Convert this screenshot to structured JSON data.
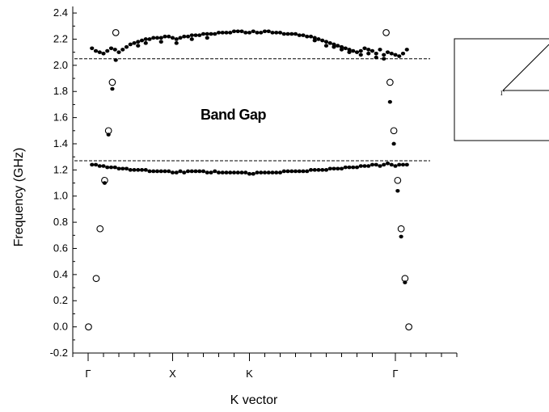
{
  "chart_data": {
    "type": "scatter",
    "xlabel": "K vector",
    "ylabel": "Frequency (GHz)",
    "ylim": [
      -0.2,
      2.45
    ],
    "yticks": [
      -0.2,
      0.0,
      0.2,
      0.4,
      0.6,
      0.8,
      1.0,
      1.2,
      1.4,
      1.6,
      1.8,
      2.0,
      2.2,
      2.4
    ],
    "ytick_labels": [
      "-0.2",
      "0.0",
      "0.2",
      "0.4",
      "0.6",
      "0.8",
      "1.0",
      "1.2",
      "1.4",
      "1.6",
      "1.8",
      "2.0",
      "2.2",
      "2.4"
    ],
    "xlim": [
      0,
      100
    ],
    "xticks": [
      {
        "x": 4,
        "label": "Γ"
      },
      {
        "x": 26,
        "label": "X"
      },
      {
        "x": 46,
        "label": "K"
      },
      {
        "x": 84,
        "label": "Γ"
      }
    ],
    "minor_xticks": [
      0,
      8,
      12,
      16,
      20,
      30,
      34,
      38,
      42,
      50,
      54,
      58,
      62,
      66,
      70,
      74,
      78,
      88,
      92,
      96,
      100
    ],
    "annotation": "Band Gap",
    "gap_lines": [
      2.05,
      1.27
    ],
    "grid": false,
    "series": [
      {
        "marker": "open-circle",
        "points": [
          [
            4.1,
            0.0
          ],
          [
            6.1,
            0.37
          ],
          [
            7.1,
            0.75
          ],
          [
            8.3,
            1.12
          ],
          [
            9.3,
            1.5
          ],
          [
            10.3,
            1.87
          ],
          [
            11.2,
            2.25
          ],
          [
            81.6,
            2.25
          ],
          [
            82.6,
            1.87
          ],
          [
            83.6,
            1.5
          ],
          [
            84.6,
            1.12
          ],
          [
            85.5,
            0.75
          ],
          [
            86.5,
            0.37
          ],
          [
            87.5,
            0.0
          ]
        ]
      },
      {
        "marker": "filled-dot",
        "points": [
          [
            8.3,
            1.1
          ],
          [
            9.3,
            1.47
          ],
          [
            10.3,
            1.82
          ],
          [
            11.2,
            2.04
          ],
          [
            82.6,
            1.72
          ],
          [
            83.6,
            1.4
          ],
          [
            84.6,
            1.04
          ],
          [
            85.5,
            0.69
          ],
          [
            86.5,
            0.34
          ]
        ]
      },
      {
        "name": "",
        "marker": "filled-dot",
        "band": "upper",
        "points": [
          [
            5,
            2.13
          ],
          [
            6,
            2.11
          ],
          [
            7,
            2.1
          ],
          [
            8,
            2.09
          ],
          [
            9,
            2.11
          ],
          [
            10,
            2.13
          ],
          [
            11,
            2.12
          ],
          [
            12,
            2.1
          ],
          [
            13,
            2.12
          ],
          [
            14,
            2.14
          ],
          [
            15,
            2.16
          ],
          [
            16,
            2.17
          ],
          [
            17,
            2.18
          ],
          [
            18,
            2.19
          ],
          [
            19,
            2.2
          ],
          [
            20,
            2.2
          ],
          [
            21,
            2.21
          ],
          [
            22,
            2.21
          ],
          [
            23,
            2.21
          ],
          [
            24,
            2.22
          ],
          [
            25,
            2.22
          ],
          [
            26,
            2.21
          ],
          [
            27,
            2.2
          ],
          [
            28,
            2.21
          ],
          [
            29,
            2.22
          ],
          [
            30,
            2.22
          ],
          [
            31,
            2.23
          ],
          [
            32,
            2.23
          ],
          [
            33,
            2.23
          ],
          [
            34,
            2.24
          ],
          [
            35,
            2.24
          ],
          [
            36,
            2.24
          ],
          [
            37,
            2.24
          ],
          [
            38,
            2.25
          ],
          [
            39,
            2.25
          ],
          [
            40,
            2.25
          ],
          [
            41,
            2.25
          ],
          [
            42,
            2.26
          ],
          [
            43,
            2.26
          ],
          [
            44,
            2.26
          ],
          [
            45,
            2.25
          ],
          [
            46,
            2.25
          ],
          [
            47,
            2.26
          ],
          [
            48,
            2.25
          ],
          [
            49,
            2.25
          ],
          [
            50,
            2.26
          ],
          [
            51,
            2.26
          ],
          [
            52,
            2.25
          ],
          [
            53,
            2.25
          ],
          [
            54,
            2.25
          ],
          [
            55,
            2.24
          ],
          [
            56,
            2.24
          ],
          [
            57,
            2.24
          ],
          [
            58,
            2.24
          ],
          [
            59,
            2.23
          ],
          [
            60,
            2.23
          ],
          [
            61,
            2.22
          ],
          [
            62,
            2.22
          ],
          [
            63,
            2.21
          ],
          [
            64,
            2.2
          ],
          [
            65,
            2.19
          ],
          [
            66,
            2.18
          ],
          [
            67,
            2.17
          ],
          [
            68,
            2.16
          ],
          [
            69,
            2.15
          ],
          [
            70,
            2.14
          ],
          [
            71,
            2.13
          ],
          [
            72,
            2.12
          ],
          [
            73,
            2.11
          ],
          [
            74,
            2.1
          ],
          [
            75,
            2.11
          ],
          [
            76,
            2.13
          ],
          [
            77,
            2.12
          ],
          [
            78,
            2.11
          ],
          [
            79,
            2.09
          ],
          [
            80,
            2.12
          ],
          [
            81,
            2.08
          ],
          [
            82,
            2.1
          ],
          [
            83,
            2.09
          ],
          [
            84,
            2.08
          ],
          [
            85,
            2.07
          ],
          [
            86,
            2.09
          ],
          [
            87,
            2.12
          ],
          [
            17,
            2.15
          ],
          [
            19,
            2.17
          ],
          [
            23,
            2.18
          ],
          [
            27,
            2.17
          ],
          [
            31,
            2.2
          ],
          [
            35,
            2.21
          ],
          [
            63,
            2.19
          ],
          [
            66,
            2.15
          ],
          [
            68,
            2.14
          ],
          [
            70,
            2.12
          ],
          [
            72,
            2.1
          ],
          [
            75,
            2.08
          ],
          [
            77,
            2.09
          ],
          [
            79,
            2.06
          ],
          [
            81,
            2.05
          ]
        ]
      },
      {
        "name": "",
        "marker": "filled-dot",
        "band": "lower",
        "points": [
          [
            5,
            1.24
          ],
          [
            6,
            1.24
          ],
          [
            7,
            1.23
          ],
          [
            8,
            1.23
          ],
          [
            9,
            1.22
          ],
          [
            10,
            1.22
          ],
          [
            11,
            1.22
          ],
          [
            12,
            1.21
          ],
          [
            13,
            1.21
          ],
          [
            14,
            1.21
          ],
          [
            15,
            1.2
          ],
          [
            16,
            1.2
          ],
          [
            17,
            1.2
          ],
          [
            18,
            1.2
          ],
          [
            19,
            1.2
          ],
          [
            20,
            1.19
          ],
          [
            21,
            1.19
          ],
          [
            22,
            1.19
          ],
          [
            23,
            1.19
          ],
          [
            24,
            1.19
          ],
          [
            25,
            1.19
          ],
          [
            26,
            1.18
          ],
          [
            27,
            1.18
          ],
          [
            28,
            1.19
          ],
          [
            29,
            1.18
          ],
          [
            30,
            1.19
          ],
          [
            31,
            1.19
          ],
          [
            32,
            1.19
          ],
          [
            33,
            1.19
          ],
          [
            34,
            1.19
          ],
          [
            35,
            1.18
          ],
          [
            36,
            1.18
          ],
          [
            37,
            1.19
          ],
          [
            38,
            1.18
          ],
          [
            39,
            1.18
          ],
          [
            40,
            1.18
          ],
          [
            41,
            1.18
          ],
          [
            42,
            1.18
          ],
          [
            43,
            1.18
          ],
          [
            44,
            1.18
          ],
          [
            45,
            1.18
          ],
          [
            46,
            1.17
          ],
          [
            47,
            1.17
          ],
          [
            48,
            1.18
          ],
          [
            49,
            1.18
          ],
          [
            50,
            1.18
          ],
          [
            51,
            1.18
          ],
          [
            52,
            1.18
          ],
          [
            53,
            1.18
          ],
          [
            54,
            1.18
          ],
          [
            55,
            1.19
          ],
          [
            56,
            1.19
          ],
          [
            57,
            1.19
          ],
          [
            58,
            1.19
          ],
          [
            59,
            1.19
          ],
          [
            60,
            1.19
          ],
          [
            61,
            1.19
          ],
          [
            62,
            1.2
          ],
          [
            63,
            1.2
          ],
          [
            64,
            1.2
          ],
          [
            65,
            1.2
          ],
          [
            66,
            1.2
          ],
          [
            67,
            1.21
          ],
          [
            68,
            1.21
          ],
          [
            69,
            1.21
          ],
          [
            70,
            1.21
          ],
          [
            71,
            1.22
          ],
          [
            72,
            1.22
          ],
          [
            73,
            1.22
          ],
          [
            74,
            1.22
          ],
          [
            75,
            1.23
          ],
          [
            76,
            1.23
          ],
          [
            77,
            1.23
          ],
          [
            78,
            1.24
          ],
          [
            79,
            1.24
          ],
          [
            80,
            1.23
          ],
          [
            81,
            1.24
          ],
          [
            82,
            1.25
          ],
          [
            83,
            1.24
          ],
          [
            84,
            1.23
          ],
          [
            85,
            1.24
          ],
          [
            86,
            1.24
          ],
          [
            87,
            1.24
          ]
        ]
      }
    ],
    "inset": {
      "label_left": "Γ"
    }
  }
}
